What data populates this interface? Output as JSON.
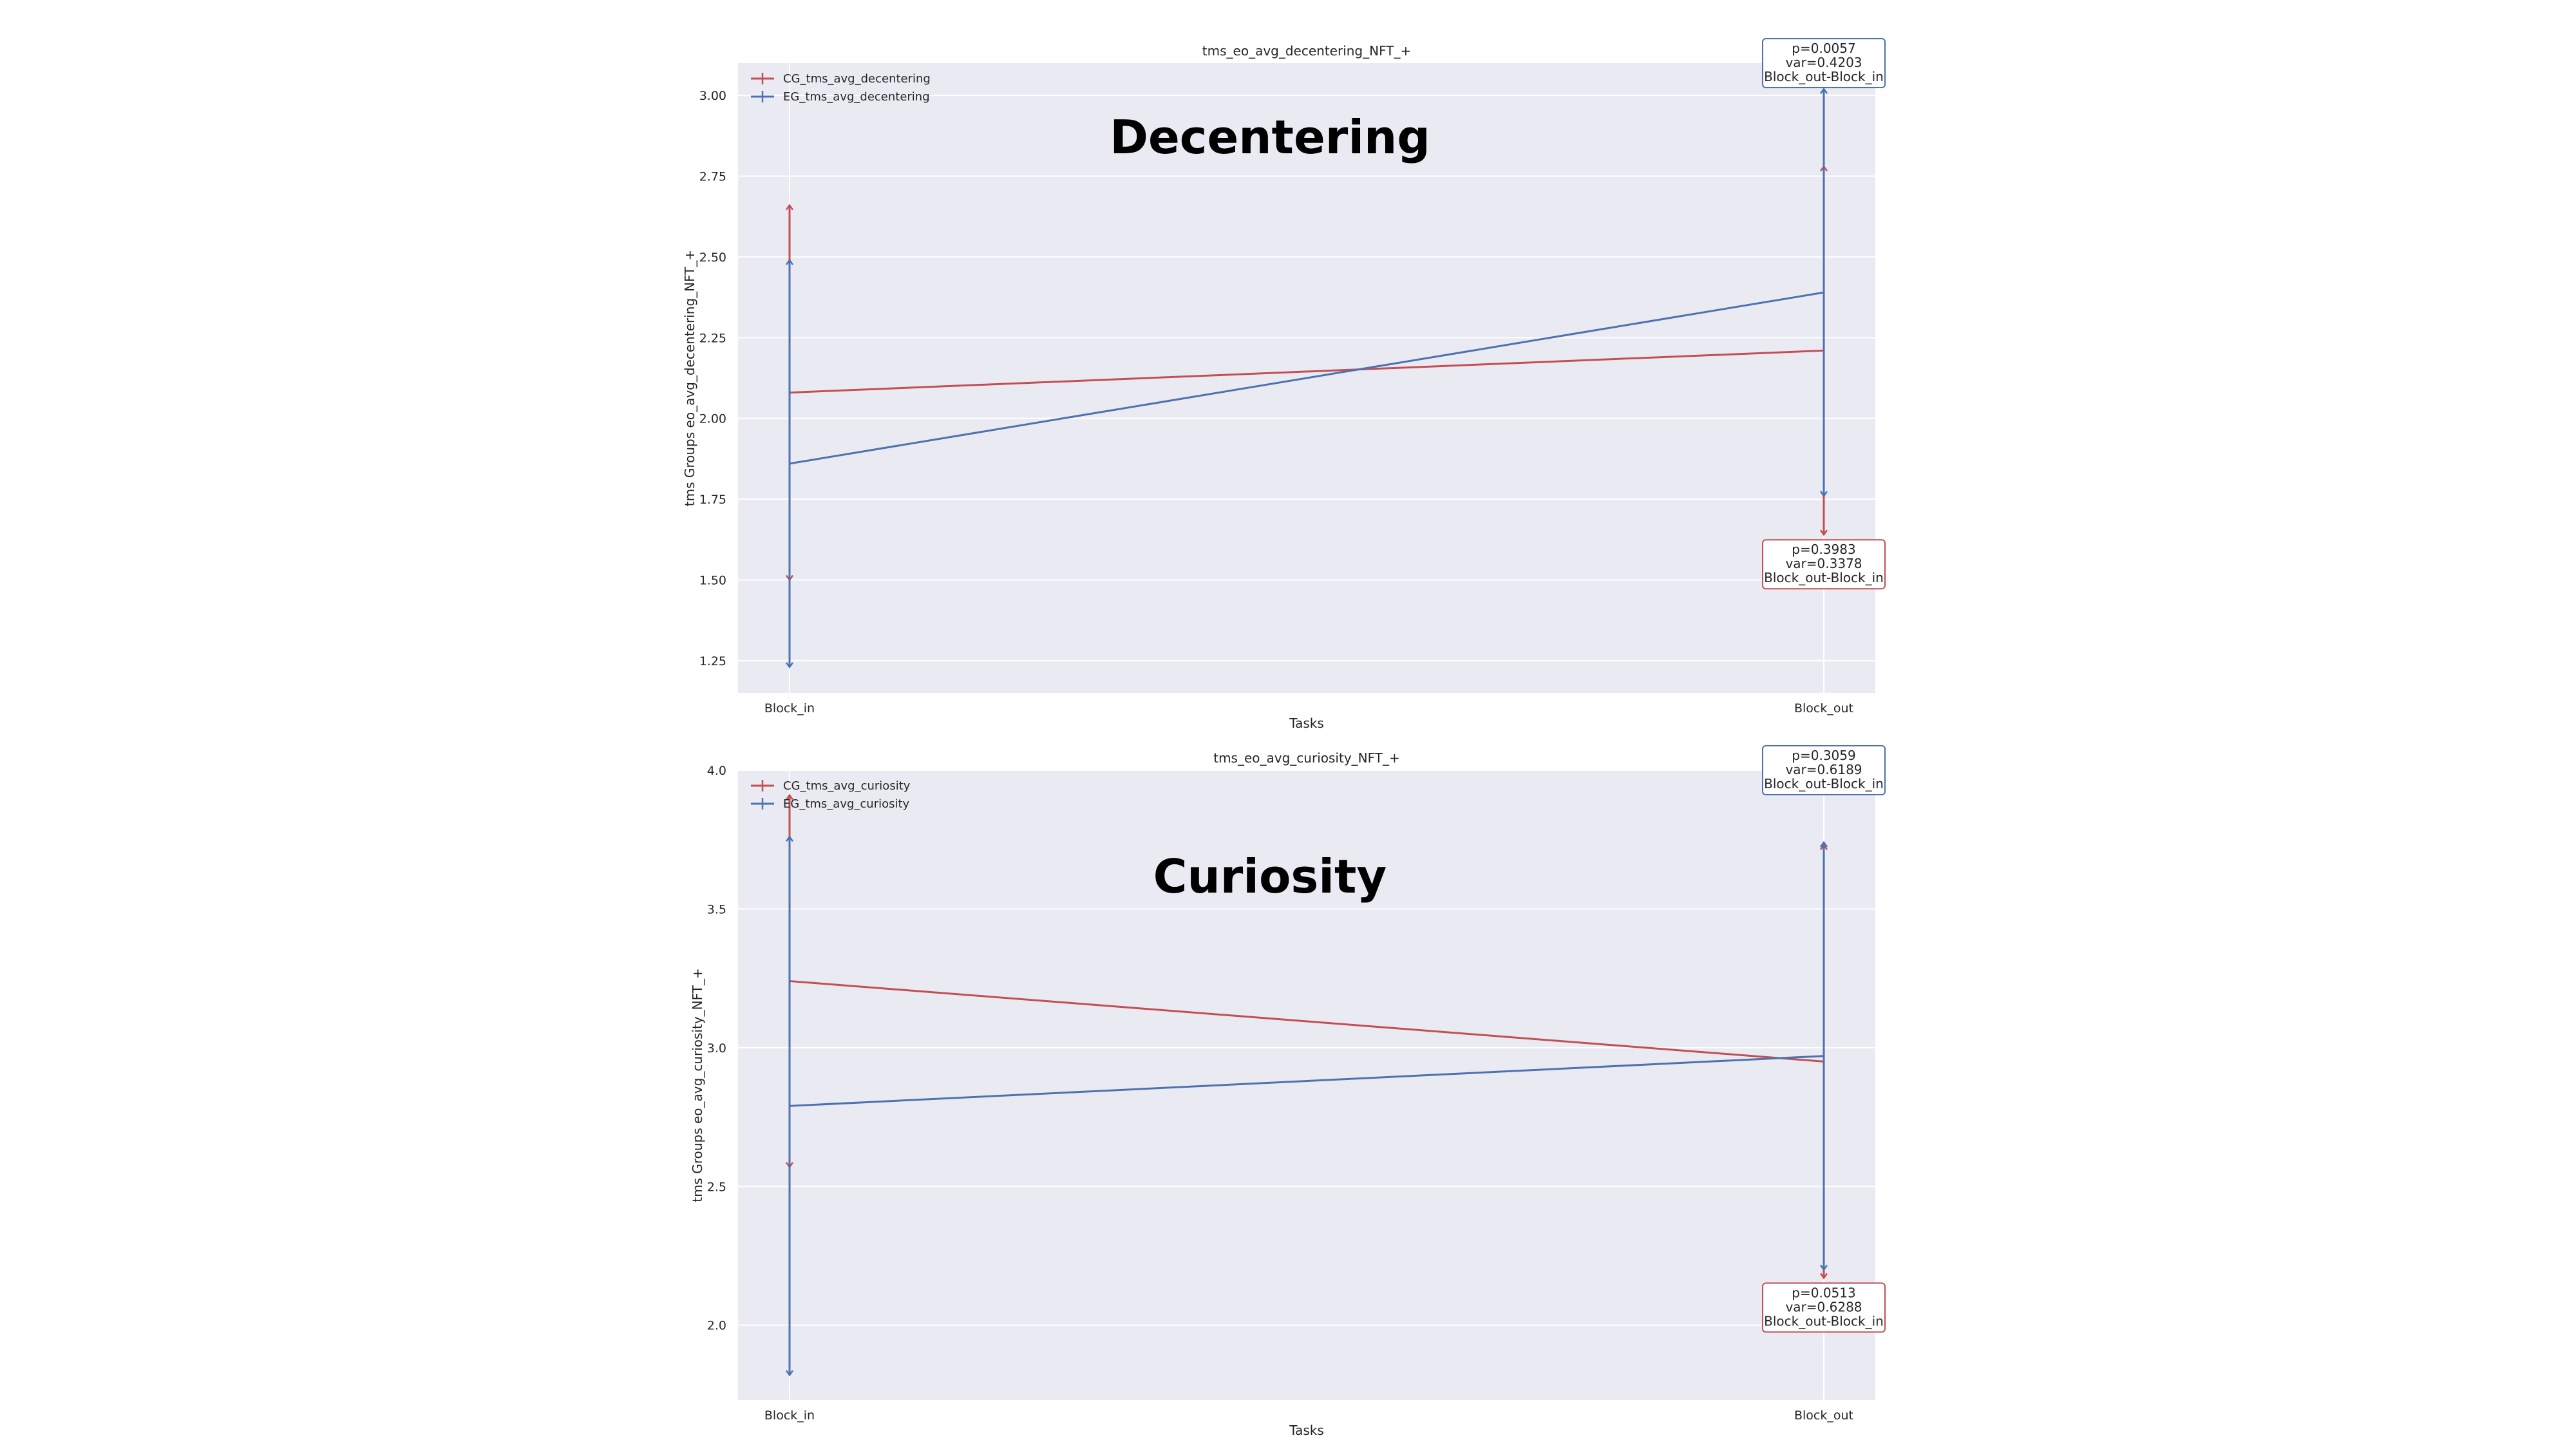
{
  "colors": {
    "background": "#eaeaf2",
    "grid": "#ffffff",
    "CG": "#c44e52",
    "EG": "#4c72b0"
  },
  "chart_data": [
    {
      "type": "line",
      "title": "tms_eo_avg_decentering_NFT_+",
      "big_label": "Decentering",
      "xlabel": "Tasks",
      "ylabel": "tms Groups eo_avg_decentering_NFT_+",
      "categories": [
        "Block_in",
        "Block_out"
      ],
      "ylim": [
        1.15,
        3.1
      ],
      "yticks": [
        "1.25",
        "1.50",
        "1.75",
        "2.00",
        "2.25",
        "2.50",
        "2.75",
        "3.00"
      ],
      "grid": true,
      "legend_position": "top-left",
      "series": [
        {
          "name": "CG_tms_avg_decentering",
          "color": "#c44e52",
          "values": [
            2.08,
            2.21
          ],
          "err_low": [
            1.5,
            1.64
          ],
          "err_high": [
            2.66,
            2.78
          ]
        },
        {
          "name": "EG_tms_avg_decentering",
          "color": "#4c72b0",
          "values": [
            1.86,
            2.39
          ],
          "err_low": [
            1.23,
            1.76
          ],
          "err_high": [
            2.49,
            3.02
          ]
        }
      ],
      "annotations": [
        {
          "series": "EG",
          "position": "top-right",
          "lines": [
            "p=0.0057",
            "var=0.4203",
            "Block_out-Block_in"
          ]
        },
        {
          "series": "CG",
          "position": "bottom-right",
          "lines": [
            "p=0.3983",
            "var=0.3378",
            "Block_out-Block_in"
          ]
        }
      ]
    },
    {
      "type": "line",
      "title": "tms_eo_avg_curiosity_NFT_+",
      "big_label": "Curiosity",
      "xlabel": "Tasks",
      "ylabel": "tms Groups eo_avg_curiosity_NFT_+",
      "categories": [
        "Block_in",
        "Block_out"
      ],
      "ylim": [
        1.73,
        4.0
      ],
      "yticks": [
        "2.0",
        "2.5",
        "3.0",
        "3.5",
        "4.0"
      ],
      "grid": true,
      "legend_position": "top-left",
      "series": [
        {
          "name": "CG_tms_avg_curiosity",
          "color": "#c44e52",
          "values": [
            3.24,
            2.95
          ],
          "err_low": [
            2.57,
            2.17
          ],
          "err_high": [
            3.91,
            3.73
          ]
        },
        {
          "name": "EG_tms_avg_curiosity",
          "color": "#4c72b0",
          "values": [
            2.79,
            2.97
          ],
          "err_low": [
            1.82,
            2.2
          ],
          "err_high": [
            3.76,
            3.74
          ]
        }
      ],
      "annotations": [
        {
          "series": "EG",
          "position": "top-right",
          "lines": [
            "p=0.3059",
            "var=0.6189",
            "Block_out-Block_in"
          ]
        },
        {
          "series": "CG",
          "position": "bottom-right",
          "lines": [
            "p=0.0513",
            "var=0.6288",
            "Block_out-Block_in"
          ]
        }
      ]
    }
  ]
}
